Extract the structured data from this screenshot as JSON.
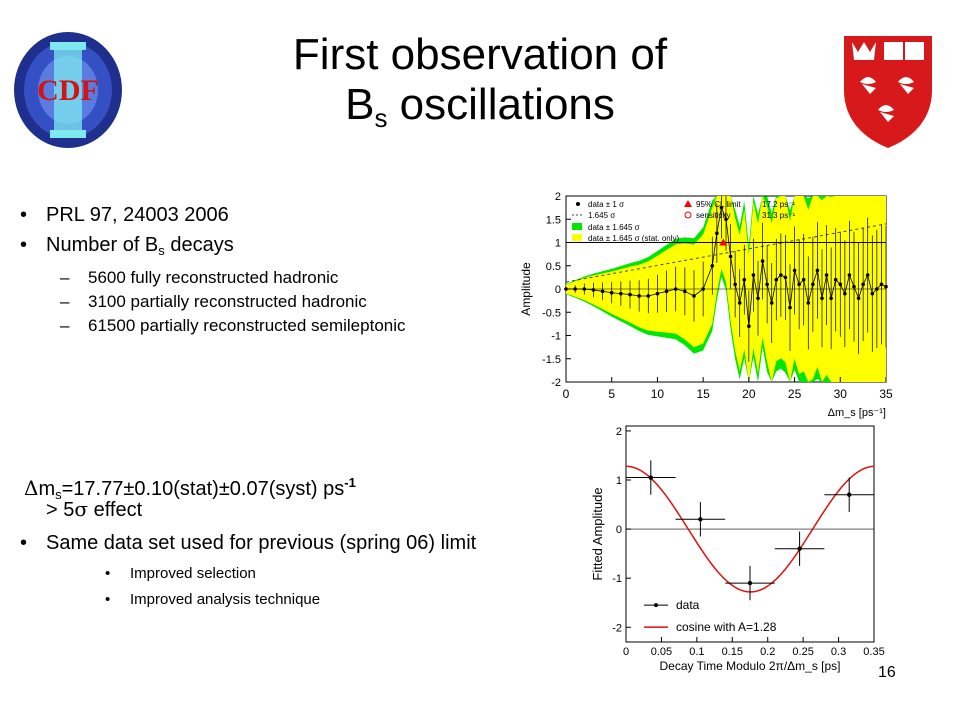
{
  "title": {
    "line1": "First observation of",
    "line2_main": "B",
    "line2_sub": "s",
    "line2_rest": " oscillations"
  },
  "logos": {
    "cdf_text": "CDF"
  },
  "bullets_top": {
    "b1": "PRL 97, 24003 2006",
    "b2_main": "Number of B",
    "b2_sub": "s",
    "b2_rest": " decays",
    "sub": [
      "5600 fully reconstructed hadronic",
      "3100 partially reconstructed hadronic",
      "61500 partially reconstructed semileptonic"
    ]
  },
  "bullets_bottom": {
    "dm_sym": "Δ",
    "dm_m": "m",
    "dm_sub": "s",
    "dm_val": "=17.77±0.10(stat)±0.07(syst) ps",
    "dm_sup": "-1",
    "effect_pre": "> 5",
    "effect_sym": "σ",
    "effect_post": " effect",
    "b2": "Same data set used for previous (spring 06) limit",
    "sub": [
      "Improved selection",
      "Improved analysis technique"
    ]
  },
  "page_number": "16",
  "colors": {
    "band_green": "#00e600",
    "band_yellow": "#ffff00",
    "cosine_red": "#dd1111",
    "limit_red": "#ff0000"
  },
  "chart_data": [
    {
      "type": "line",
      "ylabel": "Amplitude",
      "xlabel": "Δm_s [ps⁻¹]",
      "xlim": [
        0,
        35
      ],
      "ylim": [
        -2,
        2
      ],
      "xticks": [
        "0",
        "5",
        "10",
        "15",
        "20",
        "25",
        "30",
        "35"
      ],
      "yticks": [
        "2",
        "1.5",
        "1",
        "0.5",
        "0",
        "-0.5",
        "-1",
        "-1.5",
        "-2"
      ],
      "legend": [
        "data ± 1 σ",
        "1.645 σ",
        "data ± 1.645 σ",
        "data ± 1.645 σ (stat. only)",
        "95% CL limit",
        "17.2 ps⁻¹",
        "sensitivity",
        "31.3 ps⁻¹"
      ],
      "legend_position": "top-left",
      "x": [
        0,
        1,
        2,
        3,
        4,
        5,
        6,
        7,
        8,
        9,
        10,
        11,
        12,
        13,
        14,
        15,
        16,
        16.5,
        17,
        17.5,
        18,
        18.5,
        19,
        19.5,
        20,
        20.5,
        21,
        21.5,
        22,
        22.5,
        23,
        23.5,
        24,
        24.5,
        25,
        25.5,
        26,
        26.5,
        27,
        27.5,
        28,
        28.5,
        29,
        29.5,
        30,
        30.5,
        31,
        31.5,
        32,
        32.5,
        33,
        33.5,
        34,
        34.5,
        35
      ],
      "series": [
        {
          "name": "data ± 1 σ",
          "values": [
            0,
            0,
            0,
            -0.02,
            -0.05,
            -0.08,
            -0.1,
            -0.12,
            -0.15,
            -0.15,
            -0.1,
            -0.05,
            0,
            -0.05,
            -0.15,
            0,
            0.5,
            1.2,
            1.75,
            1.5,
            0.7,
            0.1,
            -0.3,
            0.2,
            -0.8,
            0.3,
            -0.2,
            0.6,
            0.1,
            -0.3,
            0.2,
            0.3,
            0.25,
            -0.4,
            0.4,
            0.1,
            0.2,
            -0.3,
            0.1,
            0.4,
            -0.2,
            0.3,
            -0.2,
            0.2,
            0.1,
            -0.1,
            0.3,
            0.05,
            -0.2,
            0.1,
            0.3,
            -0.1,
            0.0,
            0.1,
            0.05
          ]
        }
      ],
      "sensitivity_line": [
        [
          0,
          0.15
        ],
        [
          35,
          1.4
        ]
      ],
      "limit_markers": [
        [
          17.2,
          1.0
        ]
      ]
    },
    {
      "type": "scatter",
      "ylabel": "Fitted Amplitude",
      "xlabel": "Decay Time Modulo 2π/Δm_s [ps]",
      "xlim": [
        0,
        0.35
      ],
      "ylim": [
        -2.3,
        2.1
      ],
      "xticks": [
        "0",
        "0.05",
        "0.1",
        "0.15",
        "0.2",
        "0.25",
        "0.3",
        "0.35"
      ],
      "yticks": [
        "2",
        "1",
        "0",
        "-1",
        "-2"
      ],
      "series": [
        {
          "name": "data",
          "x": [
            0.035,
            0.105,
            0.175,
            0.245,
            0.315
          ],
          "y": [
            1.05,
            0.2,
            -1.1,
            -0.4,
            0.7
          ],
          "xerr": [
            0.035,
            0.035,
            0.035,
            0.035,
            0.035
          ],
          "yerr": [
            0.35,
            0.35,
            0.35,
            0.35,
            0.35
          ]
        },
        {
          "name": "cosine with A=1.28",
          "amplitude": 1.28,
          "period": 0.3513
        }
      ],
      "legend": [
        "data",
        "cosine with A=1.28"
      ],
      "legend_position": "bottom-left"
    }
  ]
}
